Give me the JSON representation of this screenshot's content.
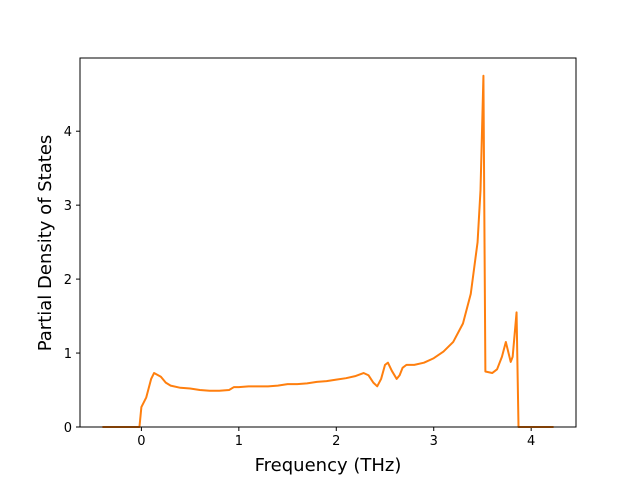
{
  "chart_data": {
    "type": "line",
    "x_label": "Frequency (THz)",
    "y_label": "Partial Density of States",
    "xlim": [
      -0.63,
      4.46
    ],
    "ylim": [
      0,
      4.99
    ],
    "xticks": [
      0,
      1,
      2,
      3,
      4
    ],
    "yticks": [
      0,
      1,
      2,
      3,
      4
    ],
    "x": [
      -0.4,
      -0.02,
      0.0,
      0.05,
      0.1,
      0.13,
      0.2,
      0.25,
      0.3,
      0.4,
      0.5,
      0.6,
      0.7,
      0.8,
      0.9,
      0.95,
      1.0,
      1.1,
      1.2,
      1.3,
      1.4,
      1.5,
      1.6,
      1.7,
      1.8,
      1.9,
      2.0,
      2.1,
      2.2,
      2.28,
      2.33,
      2.38,
      2.42,
      2.46,
      2.5,
      2.53,
      2.57,
      2.62,
      2.65,
      2.68,
      2.72,
      2.8,
      2.9,
      3.0,
      3.1,
      3.2,
      3.3,
      3.38,
      3.45,
      3.48,
      3.51,
      3.53,
      3.6,
      3.65,
      3.7,
      3.74,
      3.79,
      3.81,
      3.85,
      3.87,
      4.23
    ],
    "series": [
      {
        "color": "#ff7f0e",
        "values": [
          0,
          0,
          0.27,
          0.4,
          0.65,
          0.73,
          0.68,
          0.6,
          0.56,
          0.53,
          0.52,
          0.5,
          0.49,
          0.49,
          0.5,
          0.54,
          0.54,
          0.55,
          0.55,
          0.55,
          0.56,
          0.58,
          0.58,
          0.59,
          0.61,
          0.62,
          0.64,
          0.66,
          0.69,
          0.73,
          0.7,
          0.6,
          0.55,
          0.65,
          0.84,
          0.87,
          0.76,
          0.65,
          0.7,
          0.8,
          0.84,
          0.84,
          0.87,
          0.93,
          1.02,
          1.15,
          1.4,
          1.8,
          2.5,
          3.2,
          4.75,
          0.75,
          0.73,
          0.78,
          0.95,
          1.15,
          0.88,
          0.95,
          1.55,
          0,
          0
        ]
      }
    ]
  }
}
